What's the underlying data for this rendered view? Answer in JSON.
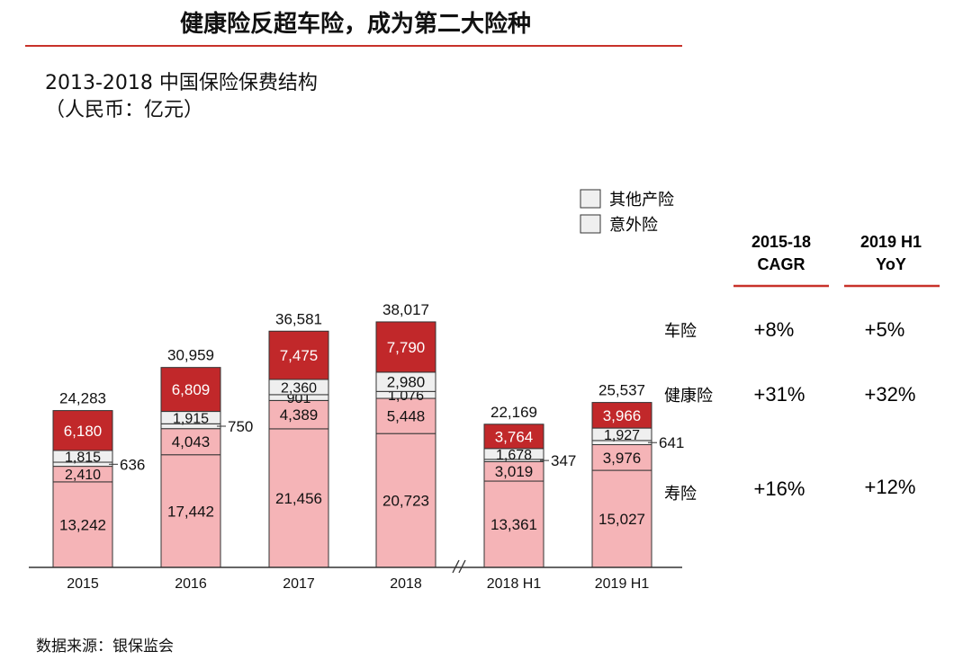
{
  "page": {
    "title": "健康险反超车险，成为第二大险种",
    "source": "数据来源：银保监会"
  },
  "colors": {
    "accent": "#c8322a",
    "car": "#c1282a",
    "other": "#efefef",
    "accident": "#efefef",
    "health": "#f5b4b7",
    "life": "#f5b4b7"
  },
  "chart_data": {
    "type": "bar",
    "stacked": true,
    "title": "2013-2018 中国保险保费结构",
    "subtitle": "（人民币：亿元）",
    "categories": [
      "2015",
      "2016",
      "2017",
      "2018",
      "2018 H1",
      "2019 H1"
    ],
    "totals": [
      "24,283",
      "30,959",
      "36,581",
      "38,017",
      "22,169",
      "25,537"
    ],
    "series": [
      {
        "name": "寿险",
        "key": "life",
        "values": [
          13242,
          17442,
          21456,
          20723,
          13361,
          15027
        ],
        "labels": [
          "13,242",
          "17,442",
          "21,456",
          "20,723",
          "13,361",
          "15,027"
        ]
      },
      {
        "name": "健康险",
        "key": "health",
        "values": [
          2410,
          4043,
          4389,
          5448,
          3019,
          3976
        ],
        "labels": [
          "2,410",
          "4,043",
          "4,389",
          "5,448",
          "3,019",
          "3,976"
        ]
      },
      {
        "name": "意外险",
        "key": "accident",
        "values": [
          636,
          750,
          901,
          1076,
          347,
          641
        ],
        "labels": [
          "636",
          "750",
          "901",
          "1,076",
          "347",
          "641"
        ]
      },
      {
        "name": "其他产险",
        "key": "other",
        "values": [
          1815,
          1915,
          2360,
          2980,
          1678,
          1927
        ],
        "labels": [
          "1,815",
          "1,915",
          "2,360",
          "2,980",
          "1,678",
          "1,927"
        ]
      },
      {
        "name": "车险",
        "key": "car",
        "values": [
          6180,
          6809,
          7475,
          7790,
          3764,
          3966
        ],
        "labels": [
          "6,180",
          "6,809",
          "7,475",
          "7,790",
          "3,764",
          "3,966"
        ]
      }
    ],
    "legend": [
      {
        "label": "其他产险"
      },
      {
        "label": "意外险"
      }
    ],
    "growth_table": {
      "headers": [
        {
          "line1": "2015-18",
          "line2": "CAGR"
        },
        {
          "line1": "2019 H1",
          "line2": "YoY"
        }
      ],
      "rows": [
        {
          "label": "车险",
          "cagr": "+8%",
          "yoy": "+5%"
        },
        {
          "label": "健康险",
          "cagr": "+31%",
          "yoy": "+32%"
        },
        {
          "label": "寿险",
          "cagr": "+16%",
          "yoy": "+12%"
        }
      ]
    }
  }
}
